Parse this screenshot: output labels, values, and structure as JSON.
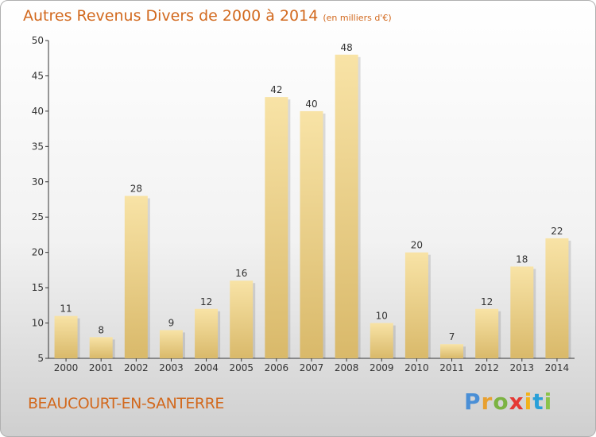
{
  "title": "Autres Revenus Divers de 2000 à 2014",
  "subtitle": "(en milliers d'€)",
  "place": "BEAUCOURT-EN-SANTERRE",
  "logo": {
    "p": "P",
    "r": "r",
    "o": "o",
    "x": "x",
    "i1": "i",
    "t": "t",
    "i2": "i"
  },
  "colors": {
    "title": "#d2691e",
    "bar_light": "#f8e3a6",
    "bar_dark": "#d9b96a"
  },
  "chart_data": {
    "type": "bar",
    "categories": [
      "2000",
      "2001",
      "2002",
      "2003",
      "2004",
      "2005",
      "2006",
      "2007",
      "2008",
      "2009",
      "2010",
      "2011",
      "2012",
      "2013",
      "2014"
    ],
    "values": [
      11,
      8,
      28,
      9,
      12,
      16,
      42,
      40,
      48,
      10,
      20,
      7,
      12,
      18,
      22
    ],
    "title": "Autres Revenus Divers de 2000 à 2014",
    "ylim": [
      5,
      50
    ],
    "yticks": [
      5,
      10,
      15,
      20,
      25,
      30,
      35,
      40,
      45,
      50
    ],
    "grid": false,
    "data_labels": true
  }
}
